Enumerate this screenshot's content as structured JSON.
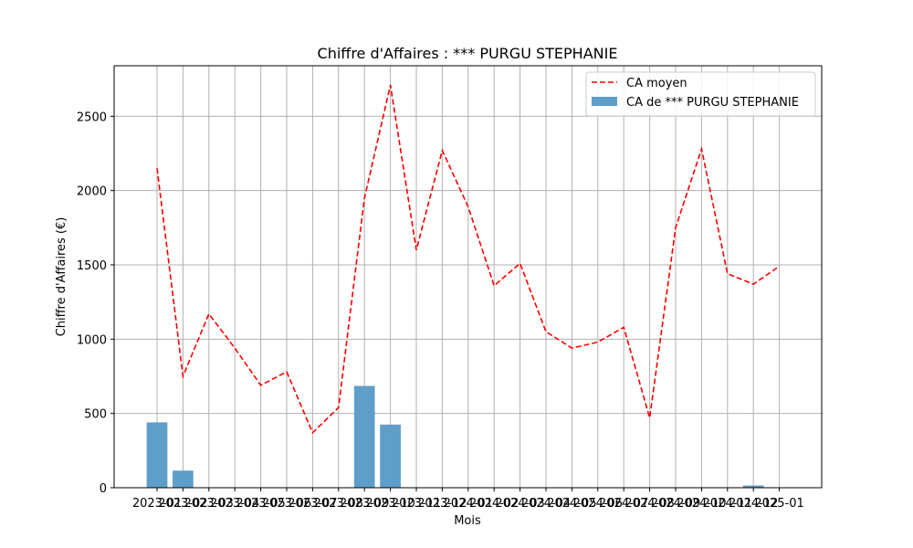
{
  "chart_data": {
    "type": "bar",
    "title": "Chiffre d'Affaires : *** PURGU STEPHANIE",
    "xlabel": "Mois",
    "ylabel": "Chiffre d'Affaires (€)",
    "categories": [
      "2023-01",
      "2023-02",
      "2023-03",
      "2023-04",
      "2023-05",
      "2023-06",
      "2023-07",
      "2023-08",
      "2023-09",
      "2023-10",
      "2023-11",
      "2023-12",
      "2024-01",
      "2024-02",
      "2024-03",
      "2024-04",
      "2024-05",
      "2024-06",
      "2024-07",
      "2024-08",
      "2024-09",
      "2024-10",
      "2024-11",
      "2024-12",
      "2025-01"
    ],
    "ylim": [
      0,
      2840
    ],
    "yticks": [
      0,
      500,
      1000,
      1500,
      2000,
      2500
    ],
    "grid": true,
    "legend_position": "top-right",
    "series": [
      {
        "name": "CA moyen",
        "kind": "line",
        "style": "dashed",
        "color": "#ff0000",
        "values": [
          2150,
          750,
          1170,
          940,
          690,
          780,
          370,
          540,
          1950,
          2710,
          1600,
          2270,
          1890,
          1360,
          1510,
          1050,
          940,
          980,
          1080,
          470,
          1750,
          2280,
          1440,
          1370,
          1490
        ]
      },
      {
        "name": "CA de *** PURGU STEPHANIE",
        "kind": "bar",
        "color": "#5f9ec9",
        "values": [
          440,
          115,
          0,
          0,
          0,
          0,
          0,
          0,
          685,
          425,
          0,
          0,
          0,
          0,
          0,
          0,
          0,
          0,
          0,
          0,
          0,
          0,
          0,
          15,
          0
        ]
      }
    ]
  }
}
